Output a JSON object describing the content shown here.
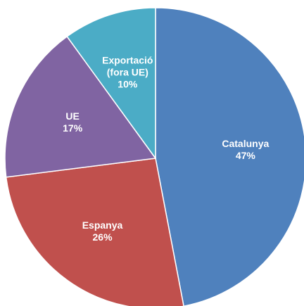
{
  "chart_data": {
    "type": "pie",
    "categories": [
      "Catalunya",
      "Espanya",
      "UE",
      "Exportació (fora UE)"
    ],
    "values": [
      47,
      26,
      17,
      10
    ],
    "value_labels": [
      "47%",
      "26%",
      "17%",
      "10%"
    ],
    "colors": [
      "#4f81bd",
      "#c0504d",
      "#8064a2",
      "#4bacc6"
    ]
  }
}
